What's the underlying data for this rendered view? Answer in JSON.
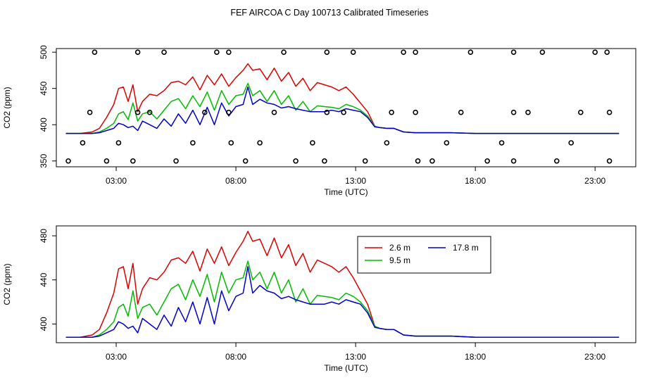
{
  "chart_data": {
    "title": "FEF AIRCOA C  Day 100713  Calibrated Timeseries",
    "series_colors": {
      "2.6 m": "#dd0000",
      "9.5 m": "#00bb00",
      "17.8 m": "#0000cc"
    },
    "panels": [
      {
        "type": "line+scatter",
        "xlabel": "Time (UTC)",
        "ylabel": "CO2 (ppm)",
        "xlim": [
          0.5,
          24.7
        ],
        "ylim": [
          342,
          505
        ],
        "x_ticks": [
          3,
          8,
          13,
          18,
          23
        ],
        "x_tick_labels": [
          "03:00",
          "08:00",
          "13:00",
          "18:00",
          "23:00"
        ],
        "y_ticks": [
          350,
          400,
          450,
          500
        ],
        "y_tick_labels": [
          "350",
          "400",
          "450",
          "500"
        ],
        "series": [
          {
            "name": "2.6 m",
            "x": [
              0.9,
              1.5,
              2.0,
              2.3,
              2.6,
              2.9,
              3.1,
              3.3,
              3.5,
              3.7,
              3.9,
              4.1,
              4.4,
              4.7,
              5.0,
              5.3,
              5.6,
              5.9,
              6.2,
              6.5,
              6.8,
              7.1,
              7.4,
              7.7,
              8.0,
              8.3,
              8.5,
              8.7,
              9.0,
              9.3,
              9.6,
              9.9,
              10.2,
              10.5,
              10.8,
              11.1,
              11.4,
              11.7,
              12.0,
              12.3,
              12.6,
              12.9,
              13.2,
              13.5,
              13.8,
              14.0,
              14.3,
              14.6,
              15.0,
              15.5,
              16.0,
              17.0,
              18.0,
              19.0,
              20.0,
              21.0,
              22.0,
              23.0,
              24.0
            ],
            "y": [
              388,
              388,
              390,
              395,
              410,
              428,
              450,
              452,
              432,
              455,
              418,
              432,
              442,
              440,
              447,
              458,
              460,
              455,
              466,
              448,
              468,
              455,
              470,
              453,
              465,
              475,
              484,
              475,
              477,
              462,
              478,
              460,
              472,
              453,
              464,
              447,
              458,
              455,
              452,
              447,
              452,
              442,
              430,
              418,
              398,
              396,
              395,
              395,
              390,
              389,
              389,
              389,
              388,
              388,
              388,
              388,
              388,
              388,
              388
            ]
          },
          {
            "name": "9.5 m",
            "x": [
              0.9,
              1.5,
              2.0,
              2.3,
              2.6,
              2.9,
              3.1,
              3.3,
              3.5,
              3.7,
              3.9,
              4.1,
              4.4,
              4.7,
              5.0,
              5.3,
              5.6,
              5.9,
              6.2,
              6.5,
              6.8,
              7.1,
              7.4,
              7.7,
              8.0,
              8.3,
              8.5,
              8.7,
              9.0,
              9.3,
              9.6,
              9.9,
              10.2,
              10.5,
              10.8,
              11.1,
              11.4,
              11.7,
              12.0,
              12.3,
              12.6,
              12.9,
              13.2,
              13.5,
              13.8,
              14.0,
              14.3,
              14.6,
              15.0,
              15.5,
              16.0,
              17.0,
              18.0,
              19.0,
              20.0,
              21.0,
              22.0,
              23.0,
              24.0
            ],
            "y": [
              388,
              388,
              388,
              390,
              395,
              402,
              415,
              418,
              407,
              430,
              405,
              415,
              418,
              408,
              420,
              432,
              436,
              422,
              440,
              425,
              445,
              420,
              447,
              428,
              440,
              442,
              457,
              440,
              447,
              432,
              447,
              428,
              440,
              420,
              432,
              418,
              426,
              425,
              424,
              422,
              428,
              425,
              420,
              412,
              398,
              396,
              395,
              395,
              390,
              389,
              389,
              389,
              388,
              388,
              388,
              388,
              388,
              388,
              388
            ]
          },
          {
            "name": "17.8 m",
            "x": [
              0.9,
              1.5,
              2.0,
              2.3,
              2.6,
              2.9,
              3.1,
              3.3,
              3.5,
              3.7,
              3.9,
              4.1,
              4.4,
              4.7,
              5.0,
              5.3,
              5.6,
              5.9,
              6.2,
              6.5,
              6.8,
              7.1,
              7.4,
              7.7,
              8.0,
              8.3,
              8.5,
              8.7,
              9.0,
              9.3,
              9.6,
              9.9,
              10.2,
              10.5,
              10.8,
              11.1,
              11.4,
              11.7,
              12.0,
              12.3,
              12.6,
              12.9,
              13.2,
              13.5,
              13.8,
              14.0,
              14.3,
              14.6,
              15.0,
              15.5,
              16.0,
              17.0,
              18.0,
              19.0,
              20.0,
              21.0,
              22.0,
              23.0,
              24.0
            ],
            "y": [
              388,
              388,
              388,
              389,
              392,
              395,
              402,
              400,
              396,
              398,
              392,
              405,
              400,
              395,
              408,
              398,
              415,
              402,
              420,
              400,
              424,
              400,
              430,
              412,
              425,
              428,
              452,
              428,
              435,
              430,
              428,
              423,
              425,
              422,
              420,
              418,
              418,
              418,
              420,
              418,
              422,
              420,
              418,
              410,
              397,
              396,
              395,
              395,
              390,
              389,
              389,
              389,
              388,
              388,
              388,
              388,
              388,
              388,
              388
            ]
          }
        ],
        "calibration_points": {
          "x": [
            2.1,
            3.9,
            5.0,
            7.2,
            7.7,
            10.0,
            11.8,
            12.9,
            15.0,
            15.5,
            17.8,
            19.6,
            20.8,
            23.0,
            23.5,
            1.9,
            3.9,
            4.4,
            6.7,
            7.7,
            9.6,
            11.8,
            12.5,
            14.5,
            15.5,
            17.4,
            19.6,
            20.2,
            22.4,
            23.6,
            1.0,
            1.6,
            2.6,
            3.1,
            3.7,
            5.5,
            6.2,
            7.8,
            8.4,
            9.0,
            10.5,
            11.2,
            11.7,
            13.4,
            14.3,
            15.6,
            16.2,
            16.8,
            18.5,
            19.1,
            19.6,
            21.4,
            22.0,
            23.6
          ],
          "y": [
            500,
            500,
            500,
            500,
            500,
            500,
            500,
            500,
            500,
            500,
            500,
            500,
            500,
            500,
            500,
            417,
            417,
            417,
            417,
            417,
            417,
            417,
            417,
            417,
            417,
            417,
            417,
            417,
            417,
            417,
            350,
            375,
            350,
            375,
            350,
            350,
            375,
            375,
            350,
            375,
            350,
            375,
            350,
            350,
            375,
            350,
            350,
            375,
            350,
            375,
            350,
            350,
            375,
            350
          ]
        }
      },
      {
        "type": "line",
        "xlabel": "Time (UTC)",
        "ylabel": "CO2 (ppm)",
        "xlim": [
          0.5,
          24.7
        ],
        "ylim": [
          383,
          489
        ],
        "x_ticks": [
          3,
          8,
          13,
          18,
          23
        ],
        "x_tick_labels": [
          "03:00",
          "08:00",
          "13:00",
          "18:00",
          "23:00"
        ],
        "y_ticks": [
          400,
          440,
          480
        ],
        "y_tick_labels": [
          "400",
          "440",
          "480"
        ],
        "legend": {
          "position": "top-center",
          "entries": [
            {
              "label": "2.6 m",
              "series": "2.6 m"
            },
            {
              "label": "17.8 m",
              "series": "17.8 m"
            },
            {
              "label": "9.5 m",
              "series": "9.5 m"
            }
          ]
        },
        "series_ref": "same as panel 1 lines"
      }
    ]
  }
}
